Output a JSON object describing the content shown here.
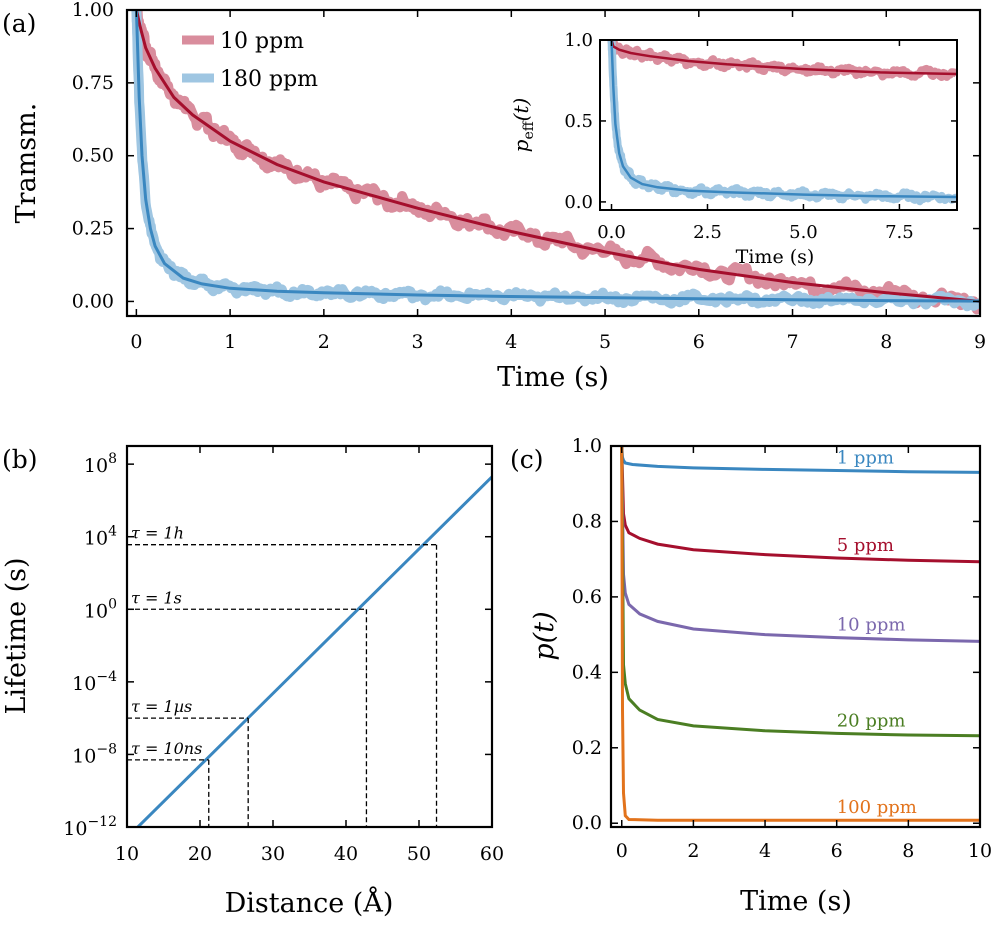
{
  "chart_data": [
    {
      "panel": "(a)",
      "type": "line",
      "xlabel": "Time (s)",
      "ylabel": "Tramsm.",
      "xlim": [
        -0.1,
        9
      ],
      "ylim": [
        -0.05,
        1.0
      ],
      "xticks": [
        0,
        1,
        2,
        3,
        4,
        5,
        6,
        7,
        8,
        9
      ],
      "yticks": [
        0.0,
        0.25,
        0.5,
        0.75,
        1.0
      ],
      "ytick_labels": [
        "0.00",
        "0.25",
        "0.50",
        "0.75",
        "1.00"
      ],
      "legend": {
        "position": "top-left",
        "entries": [
          "10 ppm",
          "180 ppm"
        ]
      },
      "series": [
        {
          "name": "10 ppm",
          "color": "#a50f2d",
          "band_color": "#d98d9d",
          "x": [
            0,
            0.05,
            0.1,
            0.2,
            0.4,
            0.6,
            1,
            1.5,
            2,
            3,
            4,
            5,
            6,
            7,
            8,
            9
          ],
          "values": [
            1.0,
            0.93,
            0.87,
            0.8,
            0.7,
            0.64,
            0.55,
            0.47,
            0.41,
            0.32,
            0.24,
            0.17,
            0.11,
            0.065,
            0.03,
            0.0
          ]
        },
        {
          "name": "180 ppm",
          "color": "#3a87c0",
          "band_color": "#9fc6e2",
          "x": [
            0,
            0.03,
            0.06,
            0.1,
            0.15,
            0.2,
            0.3,
            0.5,
            0.7,
            1,
            1.5,
            2,
            3,
            4,
            5,
            6,
            7,
            8,
            9
          ],
          "values": [
            1.0,
            0.7,
            0.5,
            0.35,
            0.25,
            0.19,
            0.13,
            0.08,
            0.06,
            0.045,
            0.035,
            0.03,
            0.022,
            0.017,
            0.013,
            0.009,
            0.006,
            0.003,
            0.001
          ]
        }
      ],
      "inset": {
        "xlabel": "Time (s)",
        "ylabel_main": "p",
        "ylabel_sub": "eff",
        "ylabel_arg": "(t)",
        "xlim": [
          -0.3,
          9
        ],
        "ylim": [
          -0.05,
          1.0
        ],
        "xticks": [
          0,
          2.5,
          5,
          7.5
        ],
        "xtick_labels": [
          "0.0",
          "2.5",
          "5.0",
          "7.5"
        ],
        "yticks": [
          0,
          0.5,
          1.0
        ],
        "ytick_labels": [
          "0.0",
          "0.5",
          "1.0"
        ],
        "series": [
          {
            "name": "10 ppm",
            "color": "#a50f2d",
            "band_color": "#d98d9d",
            "x": [
              0,
              0.05,
              0.2,
              0.5,
              1,
              2,
              3,
              5,
              7,
              9
            ],
            "values": [
              1.0,
              0.96,
              0.94,
              0.92,
              0.9,
              0.87,
              0.85,
              0.82,
              0.8,
              0.79
            ]
          },
          {
            "name": "180 ppm",
            "color": "#3a87c0",
            "band_color": "#9fc6e2",
            "x": [
              0,
              0.05,
              0.1,
              0.2,
              0.3,
              0.5,
              0.8,
              1.2,
              2,
              3,
              5,
              7,
              9
            ],
            "values": [
              1.0,
              0.7,
              0.48,
              0.3,
              0.22,
              0.15,
              0.11,
              0.09,
              0.07,
              0.06,
              0.045,
              0.035,
              0.03
            ]
          }
        ]
      }
    },
    {
      "panel": "(b)",
      "type": "line",
      "xlabel": "Distance (Å)",
      "ylabel": "Lifetime (s)",
      "xlim": [
        10,
        60
      ],
      "ylim_log10": [
        -12,
        9
      ],
      "xticks": [
        10,
        20,
        30,
        40,
        50,
        60
      ],
      "yticks_log10": [
        -12,
        -8,
        -4,
        0,
        4,
        8
      ],
      "ytick_base": "10",
      "ytick_exponents": [
        "−12",
        "−8",
        "−4",
        "0",
        "4",
        "8"
      ],
      "series": [
        {
          "name": "lifetime",
          "color": "#3a87c0",
          "x": [
            11.5,
            60
          ],
          "log10_values": [
            -12,
            7.3
          ]
        }
      ],
      "annotations": [
        {
          "label": "τ = 1h",
          "log10_tau": 3.56,
          "distance": 52.4
        },
        {
          "label": "τ = 1s",
          "log10_tau": 0,
          "distance": 42.8
        },
        {
          "label": "τ = 1µs",
          "log10_tau": -6,
          "distance": 26.6
        },
        {
          "label": "τ = 10ns",
          "log10_tau": -8.3,
          "distance": 21.2
        }
      ]
    },
    {
      "panel": "(c)",
      "type": "line",
      "xlabel": "Time (s)",
      "ylabel_main": "p",
      "ylabel_arg": "(t)",
      "xlim": [
        -0.3,
        10
      ],
      "ylim": [
        -0.01,
        1.0
      ],
      "xticks": [
        0,
        2,
        4,
        6,
        8,
        10
      ],
      "yticks": [
        0,
        0.2,
        0.4,
        0.6,
        0.8,
        1.0
      ],
      "ytick_labels": [
        "0.0",
        "0.2",
        "0.4",
        "0.6",
        "0.8",
        "1.0"
      ],
      "series": [
        {
          "name": "1 ppm",
          "color": "#3a87c0",
          "x": [
            0,
            0.02,
            0.05,
            0.1,
            0.3,
            1,
            2,
            4,
            6,
            8,
            10
          ],
          "values": [
            1.0,
            0.97,
            0.962,
            0.955,
            0.951,
            0.946,
            0.942,
            0.938,
            0.935,
            0.932,
            0.93
          ]
        },
        {
          "name": "5 ppm",
          "color": "#a50f2d",
          "x": [
            0,
            0.05,
            0.1,
            0.2,
            0.5,
            1,
            2,
            4,
            6,
            8,
            10
          ],
          "values": [
            1.0,
            0.82,
            0.79,
            0.77,
            0.755,
            0.74,
            0.725,
            0.712,
            0.703,
            0.697,
            0.693
          ]
        },
        {
          "name": "10 ppm",
          "color": "#7b68ad",
          "x": [
            0,
            0.05,
            0.1,
            0.2,
            0.5,
            1,
            2,
            4,
            6,
            8,
            10
          ],
          "values": [
            1.0,
            0.66,
            0.61,
            0.58,
            0.555,
            0.535,
            0.515,
            0.5,
            0.492,
            0.486,
            0.482
          ]
        },
        {
          "name": "20 ppm",
          "color": "#4b7e23",
          "x": [
            0,
            0.05,
            0.1,
            0.2,
            0.5,
            1,
            2,
            4,
            6,
            8,
            10
          ],
          "values": [
            1.0,
            0.42,
            0.37,
            0.33,
            0.3,
            0.275,
            0.258,
            0.245,
            0.238,
            0.234,
            0.232
          ]
        },
        {
          "name": "100 ppm",
          "color": "#e2731c",
          "x": [
            0,
            0.02,
            0.05,
            0.1,
            0.2,
            1,
            10
          ],
          "values": [
            1.0,
            0.3,
            0.08,
            0.02,
            0.01,
            0.008,
            0.008
          ]
        }
      ]
    }
  ]
}
